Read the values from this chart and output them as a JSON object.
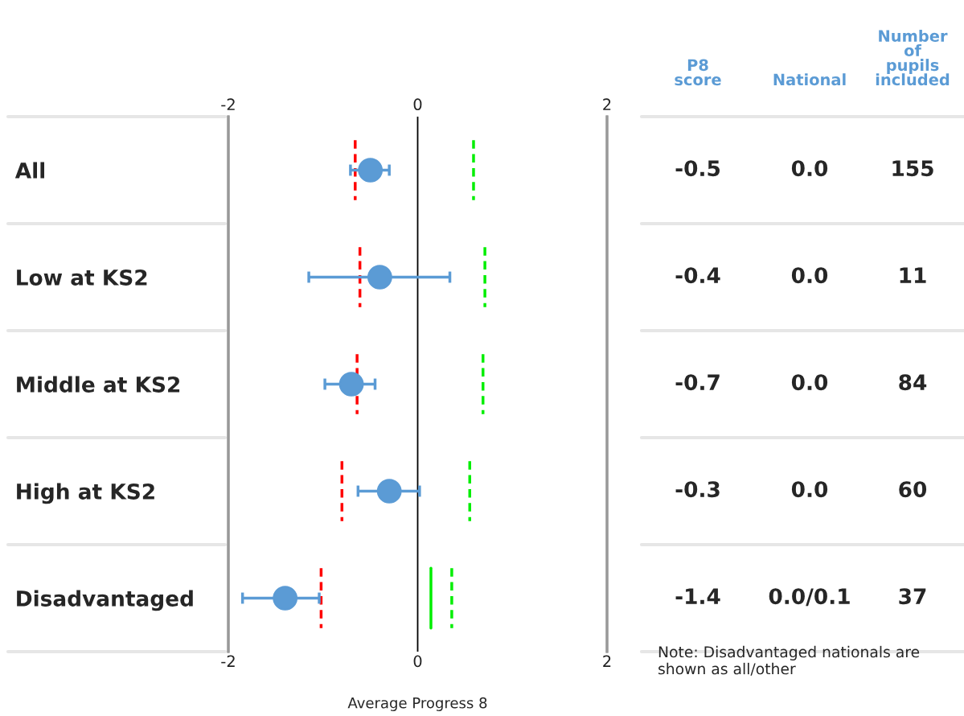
{
  "chart_data": {
    "type": "scatter",
    "orientation": "horizontal",
    "xlabel": "Average Progress 8",
    "categories": [
      "All",
      "Low at KS2",
      "Middle at KS2",
      "High at KS2",
      "Disadvantaged"
    ],
    "xlim": [
      -2,
      2
    ],
    "xticks": [
      -2,
      0,
      2
    ],
    "x2lim": [
      -2,
      2
    ],
    "x2ticks": [
      -2,
      0,
      2
    ],
    "grid": "x",
    "legend": false,
    "ref_lines": [
      {
        "axis": "x",
        "value": -0.66,
        "color": "#ff0000",
        "line_style": "dashed"
      },
      {
        "axis": "x",
        "value": -0.61,
        "color": "#ff0000",
        "line_style": "dashed"
      },
      {
        "axis": "x",
        "value": -0.64,
        "color": "#ff0000",
        "line_style": "dashed"
      },
      {
        "axis": "x",
        "value": -0.8,
        "color": "#ff0000",
        "line_style": "dashed"
      },
      {
        "axis": "x",
        "value": -1.02,
        "color": "#ff0000",
        "line_style": "dashed"
      },
      {
        "axis": "x",
        "value": 0.59,
        "color": "#00ee00",
        "line_style": "dashed"
      },
      {
        "axis": "x",
        "value": 0.71,
        "color": "#00ee00",
        "line_style": "dashed"
      },
      {
        "axis": "x",
        "value": 0.69,
        "color": "#00ee00",
        "line_style": "dashed"
      },
      {
        "axis": "x",
        "value": 0.55,
        "color": "#00ee00",
        "line_style": "dashed"
      },
      {
        "axis": "x",
        "value": 0.36,
        "color": "#00ee00",
        "line_style": "dashed"
      },
      {
        "axis": "x",
        "value": 0.14,
        "color": "#00ee00",
        "line_style": "solid"
      }
    ],
    "series": [
      {
        "type": "scatter",
        "marker": "circle",
        "color": "#5b9bd5",
        "values": [
          -0.5,
          -0.4,
          -0.7,
          -0.3,
          -1.4
        ],
        "value_labels": [
          "-0.5",
          "-0.4",
          "-0.7",
          "-0.3",
          "-1.4"
        ],
        "errors": [
          [
            -0.71,
            -0.3
          ],
          [
            -1.15,
            0.34
          ],
          [
            -0.98,
            -0.45
          ],
          [
            -0.63,
            0.02
          ],
          [
            -1.85,
            -1.04
          ]
        ]
      }
    ],
    "annotations": [
      "P8\nscore",
      "National",
      "Number\nof\npupils\nincluded",
      "Note: Disadvantaged nationals are shown as all/other",
      "0.0",
      "155",
      "0.0",
      "11",
      "0.0",
      "84",
      "0.0",
      "60",
      "0.0/0.1",
      "37"
    ]
  }
}
